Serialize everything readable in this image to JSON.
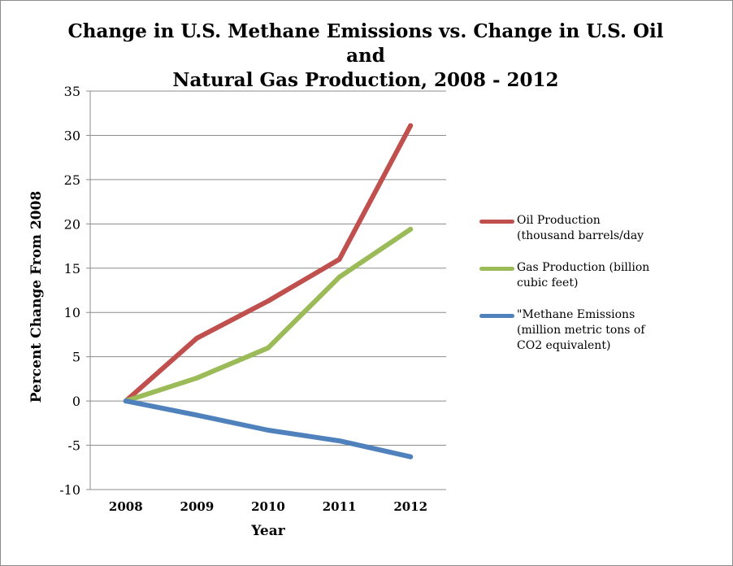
{
  "chart_data": {
    "type": "line",
    "title_lines": [
      "Change in U.S. Methane Emissions vs. Change in U.S. Oil and",
      "Natural Gas Production, 2008 - 2012"
    ],
    "xlabel": "Year",
    "ylabel": "Percent Change From 2008",
    "x": [
      "2008",
      "2009",
      "2010",
      "2011",
      "2012"
    ],
    "ylim": [
      -10,
      35
    ],
    "yticks": [
      "35",
      "30",
      "25",
      "20",
      "15",
      "10",
      "5",
      "0",
      "-5",
      "-10"
    ],
    "grid": "horizontal",
    "legend_position": "right",
    "series": [
      {
        "name_lines": [
          "Oil Production",
          "(thousand barrels/day"
        ],
        "color": "#c0504d",
        "values": [
          0,
          7.1,
          11.3,
          16.0,
          31.1
        ]
      },
      {
        "name_lines": [
          "Gas Production (billion",
          "cubic feet)"
        ],
        "color": "#9bbb59",
        "values": [
          0,
          2.6,
          6.0,
          14.0,
          19.4
        ]
      },
      {
        "name_lines": [
          "\"Methane Emissions",
          "(million metric tons of",
          "CO2 equivalent)"
        ],
        "color": "#4f81bd",
        "values": [
          0,
          -1.6,
          -3.3,
          -4.5,
          -6.3
        ]
      }
    ]
  }
}
